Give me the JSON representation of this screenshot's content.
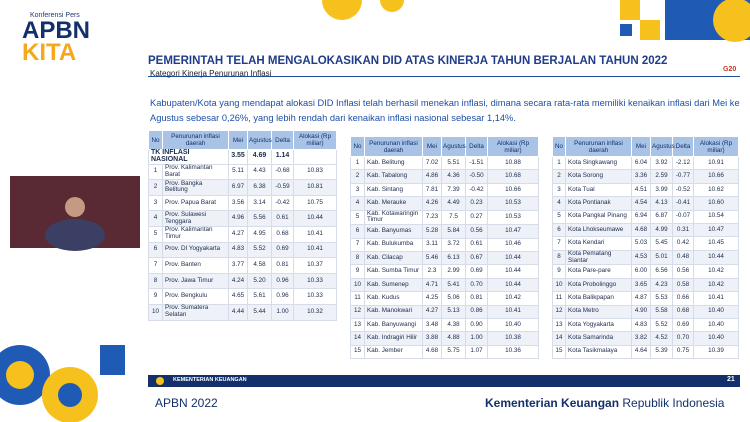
{
  "header": {
    "kicker": "Konferensi Pers",
    "brand_top": "APBN",
    "brand_bottom": "KITA",
    "logo": "G20"
  },
  "title": "PEMERINTAH TELAH MENGALOKASIKAN DID ATAS KINERJA TAHUN BERJALAN TAHUN 2022",
  "subtitle": "Kategori Kinerja Penurunan Inflasi",
  "paragraph": "Kabupaten/Kota yang mendapat alokasi DID Inflasi telah berhasil menekan inflasi, dimana secara rata-rata memiliki kenaikan inflasi dari Mei ke Agustus sebesar 0,26%, yang lebih rendah dari kenaikan inflasi nasional sebesar 1,14%.",
  "tables": [
    {
      "headers": [
        "No",
        "Penurunan inflasi daerah",
        "Mei",
        "Agustus",
        "Delta",
        "Alokasi (Rp miliar)"
      ],
      "national_row": [
        "TK INFLASI NASIONAL",
        "3.55",
        "4.69",
        "1.14"
      ],
      "rows": [
        [
          "1",
          "Prov. Kalimantan Barat",
          "5.11",
          "4.43",
          "-0.68",
          "10.83"
        ],
        [
          "2",
          "Prov. Bangka Belitung",
          "6.97",
          "6.38",
          "-0.59",
          "10.81"
        ],
        [
          "3",
          "Prov. Papua Barat",
          "3.56",
          "3.14",
          "-0.42",
          "10.75"
        ],
        [
          "4",
          "Prov. Sulawesi Tenggara",
          "4.96",
          "5.56",
          "0.61",
          "10.44"
        ],
        [
          "5",
          "Prov. Kalimantan Timur",
          "4.27",
          "4.95",
          "0.68",
          "10.41"
        ],
        [
          "6",
          "Prov. DI Yogyakarta",
          "4.83",
          "5.52",
          "0.69",
          "10.41"
        ],
        [
          "7",
          "Prov. Banten",
          "3.77",
          "4.58",
          "0.81",
          "10.37"
        ],
        [
          "8",
          "Prov. Jawa Timur",
          "4.24",
          "5.20",
          "0.96",
          "10.33"
        ],
        [
          "9",
          "Prov. Bengkulu",
          "4.65",
          "5.61",
          "0.96",
          "10.33"
        ],
        [
          "10",
          "Prov. Sumatera Selatan",
          "4.44",
          "5.44",
          "1.00",
          "10.32"
        ]
      ]
    },
    {
      "headers": [
        "No",
        "Penurunan inflasi daerah",
        "Mei",
        "Agustus",
        "Delta",
        "Alokasi (Rp miliar)"
      ],
      "rows": [
        [
          "1",
          "Kab. Belitung",
          "7.02",
          "5.51",
          "-1.51",
          "10.88"
        ],
        [
          "2",
          "Kab. Tabalong",
          "4.86",
          "4.36",
          "-0.50",
          "10.68"
        ],
        [
          "3",
          "Kab. Sintang",
          "7.81",
          "7.39",
          "-0.42",
          "10.66"
        ],
        [
          "4",
          "Kab. Merauke",
          "4.26",
          "4.49",
          "0.23",
          "10.53"
        ],
        [
          "5",
          "Kab. Kotawaringin Timur",
          "7.23",
          "7.5",
          "0.27",
          "10.53"
        ],
        [
          "6",
          "Kab. Banyumas",
          "5.28",
          "5.84",
          "0.56",
          "10.47"
        ],
        [
          "7",
          "Kab. Bulukumba",
          "3.11",
          "3.72",
          "0.61",
          "10.46"
        ],
        [
          "8",
          "Kab. Cilacap",
          "5.46",
          "6.13",
          "0.67",
          "10.44"
        ],
        [
          "9",
          "Kab. Sumba Timur",
          "2.3",
          "2.99",
          "0.69",
          "10.44"
        ],
        [
          "10",
          "Kab. Sumenep",
          "4.71",
          "5.41",
          "0.70",
          "10.44"
        ],
        [
          "11",
          "Kab. Kudus",
          "4.25",
          "5.06",
          "0.81",
          "10.42"
        ],
        [
          "12",
          "Kab. Manokwari",
          "4.27",
          "5.13",
          "0.86",
          "10.41"
        ],
        [
          "13",
          "Kab. Banyuwangi",
          "3.48",
          "4.38",
          "0.90",
          "10.40"
        ],
        [
          "14",
          "Kab. Indragiri Hilir",
          "3.88",
          "4.88",
          "1.00",
          "10.38"
        ],
        [
          "15",
          "Kab. Jember",
          "4.68",
          "5.75",
          "1.07",
          "10.36"
        ]
      ]
    },
    {
      "headers": [
        "No",
        "Penurunan inflasi daerah",
        "Mei",
        "Agustus",
        "Delta",
        "Alokasi (Rp miliar)"
      ],
      "rows": [
        [
          "1",
          "Kota Singkawang",
          "6.04",
          "3.92",
          "-2.12",
          "10.91"
        ],
        [
          "2",
          "Kota Sorong",
          "3.36",
          "2.59",
          "-0.77",
          "10.66"
        ],
        [
          "3",
          "Kota Tual",
          "4.51",
          "3.99",
          "-0.52",
          "10.62"
        ],
        [
          "4",
          "Kota Pontianak",
          "4.54",
          "4.13",
          "-0.41",
          "10.60"
        ],
        [
          "5",
          "Kota Pangkal Pinang",
          "6.94",
          "6.87",
          "-0.07",
          "10.54"
        ],
        [
          "6",
          "Kota Lhokseumawe",
          "4.68",
          "4.99",
          "0.31",
          "10.47"
        ],
        [
          "7",
          "Kota Kendari",
          "5.03",
          "5.45",
          "0.42",
          "10.45"
        ],
        [
          "8",
          "Kota Pematang Siantar",
          "4.53",
          "5.01",
          "0.48",
          "10.44"
        ],
        [
          "9",
          "Kota Pare-pare",
          "6.00",
          "6.56",
          "0.56",
          "10.42"
        ],
        [
          "10",
          "Kota Probolinggo",
          "3.65",
          "4.23",
          "0.58",
          "10.42"
        ],
        [
          "11",
          "Kota Balikpapan",
          "4.87",
          "5.53",
          "0.66",
          "10.41"
        ],
        [
          "12",
          "Kota Metro",
          "4.90",
          "5.58",
          "0.68",
          "10.40"
        ],
        [
          "13",
          "Kota Yogyakarta",
          "4.83",
          "5.52",
          "0.69",
          "10.40"
        ],
        [
          "14",
          "Kota Samarinda",
          "3.82",
          "4.52",
          "0.70",
          "10.40"
        ],
        [
          "15",
          "Kota Tasikmalaya",
          "4.64",
          "5.39",
          "0.75",
          "10.39"
        ]
      ]
    }
  ],
  "footer": {
    "ministry": "KEMENTERIAN KEUANGAN",
    "page": "21",
    "left": "APBN 2022",
    "right_bold": "Kementerian Keuangan",
    "right_regular": "Republik Indonesia"
  }
}
